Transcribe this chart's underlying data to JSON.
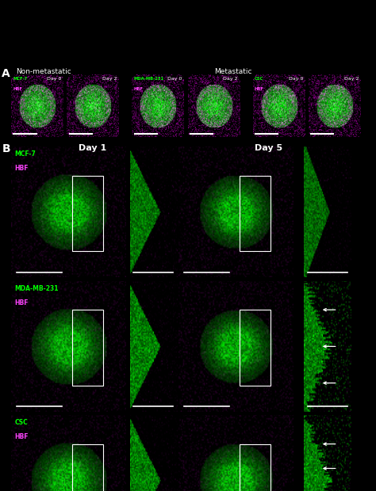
{
  "fig_width": 4.74,
  "fig_height": 6.2,
  "dpi": 100,
  "background": "#000000",
  "panel_A_label": "A",
  "panel_B_label": "B",
  "panel_B_day1_label": "Day 1",
  "panel_B_day5_label": "Day 5",
  "panel_B_rows": [
    {
      "label1": "MCF-7",
      "label2": "HBF",
      "has_arrows": false
    },
    {
      "label1": "MDA-MB-231",
      "label2": "HBF",
      "has_arrows": true
    },
    {
      "label1": "CSC",
      "label2": "HBF",
      "has_arrows": true
    }
  ],
  "label1_color": "#00ff00",
  "label2_color": "#ff44ff",
  "white": "#ffffff",
  "background_color": "#000000"
}
